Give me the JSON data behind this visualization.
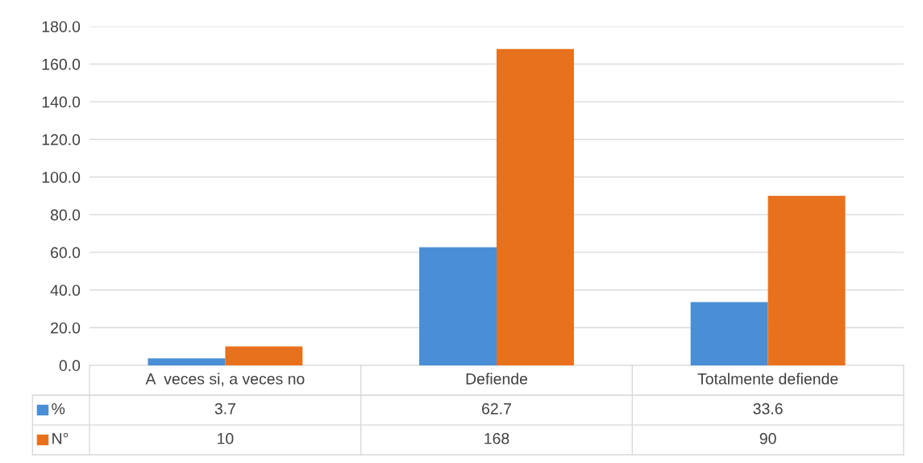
{
  "chart_data": {
    "type": "bar",
    "categories": [
      "A  veces si, a veces no",
      "Defiende",
      "Totalmente defiende"
    ],
    "series": [
      {
        "name": "%",
        "color": "#4a8fd6",
        "values": [
          3.7,
          62.7,
          33.6
        ]
      },
      {
        "name": "N°",
        "color": "#e8711e",
        "values": [
          10,
          168,
          90
        ]
      }
    ],
    "ylim": [
      0,
      180
    ],
    "yticks": [
      {
        "value": 0,
        "label": "0.0"
      },
      {
        "value": 20,
        "label": "20.0"
      },
      {
        "value": 40,
        "label": "40.0"
      },
      {
        "value": 60,
        "label": "60.0"
      },
      {
        "value": 80,
        "label": "80.0"
      },
      {
        "value": 100,
        "label": "100.0"
      },
      {
        "value": 120,
        "label": "120.0"
      },
      {
        "value": 140,
        "label": "140.0"
      },
      {
        "value": 160,
        "label": "160.0"
      },
      {
        "value": 180,
        "label": "180.0"
      }
    ],
    "grid": "y",
    "data_labels": true,
    "legend": "bottom"
  }
}
